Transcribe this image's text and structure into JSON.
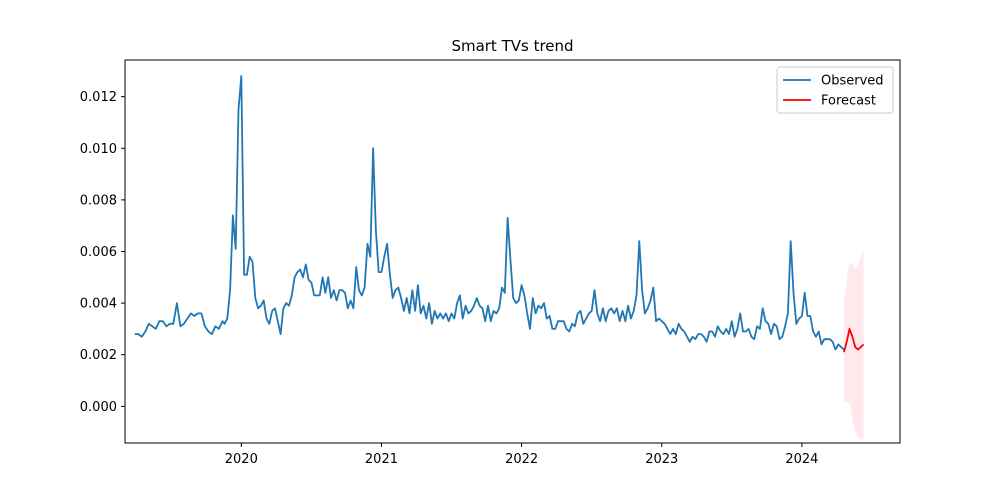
{
  "chart_data": {
    "type": "line",
    "title": "Smart TVs trend",
    "xlabel": "",
    "ylabel": "",
    "xlim": [
      2019.17,
      2024.7
    ],
    "ylim": [
      -0.00142,
      0.01342
    ],
    "xticks": [
      2020,
      2021,
      2022,
      2023,
      2024
    ],
    "xtick_labels": [
      "2020",
      "2021",
      "2022",
      "2023",
      "2024"
    ],
    "yticks": [
      0.0,
      0.002,
      0.004,
      0.006,
      0.008,
      0.01,
      0.012
    ],
    "ytick_labels": [
      "0.000",
      "0.002",
      "0.004",
      "0.006",
      "0.008",
      "0.010",
      "0.012"
    ],
    "legend": {
      "placement": "top-right",
      "entries": [
        {
          "label": "Observed",
          "color": "#1f77b4"
        },
        {
          "label": "Forecast",
          "color": "#ff0000"
        }
      ]
    },
    "grid": false,
    "series": [
      {
        "name": "Observed",
        "color": "#1f77b4",
        "x": [
          2019.24,
          2019.265,
          2019.29,
          2019.315,
          2019.34,
          2019.365,
          2019.39,
          2019.415,
          2019.44,
          2019.465,
          2019.49,
          2019.515,
          2019.54,
          2019.565,
          2019.59,
          2019.615,
          2019.64,
          2019.665,
          2019.69,
          2019.715,
          2019.74,
          2019.765,
          2019.79,
          2019.815,
          2019.84,
          2019.865,
          2019.88,
          2019.9,
          2019.92,
          2019.94,
          2019.96,
          2019.98,
          2020.0,
          2020.02,
          2020.04,
          2020.06,
          2020.08,
          2020.1,
          2020.12,
          2020.14,
          2020.16,
          2020.18,
          2020.2,
          2020.22,
          2020.24,
          2020.26,
          2020.28,
          2020.3,
          2020.32,
          2020.34,
          2020.36,
          2020.38,
          2020.4,
          2020.42,
          2020.44,
          2020.46,
          2020.48,
          2020.5,
          2020.52,
          2020.54,
          2020.56,
          2020.58,
          2020.6,
          2020.62,
          2020.64,
          2020.66,
          2020.68,
          2020.7,
          2020.72,
          2020.74,
          2020.76,
          2020.78,
          2020.8,
          2020.82,
          2020.84,
          2020.86,
          2020.88,
          2020.9,
          2020.92,
          2020.94,
          2020.96,
          2020.98,
          2021.0,
          2021.02,
          2021.04,
          2021.06,
          2021.08,
          2021.1,
          2021.12,
          2021.14,
          2021.16,
          2021.18,
          2021.2,
          2021.22,
          2021.24,
          2021.26,
          2021.28,
          2021.3,
          2021.32,
          2021.34,
          2021.36,
          2021.38,
          2021.4,
          2021.42,
          2021.44,
          2021.46,
          2021.48,
          2021.5,
          2021.52,
          2021.54,
          2021.56,
          2021.58,
          2021.6,
          2021.62,
          2021.64,
          2021.66,
          2021.68,
          2021.7,
          2021.72,
          2021.74,
          2021.76,
          2021.78,
          2021.8,
          2021.82,
          2021.84,
          2021.86,
          2021.88,
          2021.9,
          2021.92,
          2021.94,
          2021.96,
          2021.98,
          2022.0,
          2022.02,
          2022.04,
          2022.06,
          2022.08,
          2022.1,
          2022.12,
          2022.14,
          2022.16,
          2022.18,
          2022.2,
          2022.22,
          2022.24,
          2022.26,
          2022.28,
          2022.3,
          2022.32,
          2022.34,
          2022.36,
          2022.38,
          2022.4,
          2022.42,
          2022.44,
          2022.46,
          2022.48,
          2022.5,
          2022.52,
          2022.54,
          2022.56,
          2022.58,
          2022.6,
          2022.62,
          2022.64,
          2022.66,
          2022.68,
          2022.7,
          2022.72,
          2022.74,
          2022.76,
          2022.78,
          2022.8,
          2022.82,
          2022.84,
          2022.86,
          2022.88,
          2022.9,
          2022.92,
          2022.94,
          2022.96,
          2022.98,
          2023.0,
          2023.02,
          2023.04,
          2023.06,
          2023.08,
          2023.1,
          2023.12,
          2023.14,
          2023.16,
          2023.18,
          2023.2,
          2023.22,
          2023.24,
          2023.26,
          2023.28,
          2023.3,
          2023.32,
          2023.34,
          2023.36,
          2023.38,
          2023.4,
          2023.42,
          2023.44,
          2023.46,
          2023.48,
          2023.5,
          2023.52,
          2023.54,
          2023.56,
          2023.58,
          2023.6,
          2023.62,
          2023.64,
          2023.66,
          2023.68,
          2023.7,
          2023.72,
          2023.74,
          2023.76,
          2023.78,
          2023.8,
          2023.82,
          2023.84,
          2023.86,
          2023.88,
          2023.9,
          2023.92,
          2023.94,
          2023.96,
          2023.98,
          2024.0,
          2024.02,
          2024.04,
          2024.06,
          2024.08,
          2024.1,
          2024.12,
          2024.14,
          2024.16,
          2024.18,
          2024.2,
          2024.22,
          2024.24,
          2024.26,
          2024.28,
          2024.3
        ],
        "y": [
          0.0028,
          0.0028,
          0.0027,
          0.0029,
          0.0032,
          0.0031,
          0.003,
          0.0033,
          0.0033,
          0.0031,
          0.0032,
          0.0032,
          0.004,
          0.0031,
          0.0032,
          0.0034,
          0.0036,
          0.0035,
          0.0036,
          0.0036,
          0.0031,
          0.0029,
          0.0028,
          0.0031,
          0.003,
          0.0033,
          0.0032,
          0.0034,
          0.0045,
          0.0074,
          0.0061,
          0.0115,
          0.0128,
          0.0051,
          0.0051,
          0.0058,
          0.0056,
          0.0042,
          0.0038,
          0.0039,
          0.0041,
          0.0034,
          0.0032,
          0.0037,
          0.0038,
          0.0033,
          0.0028,
          0.0038,
          0.004,
          0.0039,
          0.0043,
          0.005,
          0.0052,
          0.0053,
          0.005,
          0.0055,
          0.0049,
          0.0048,
          0.0043,
          0.0043,
          0.0043,
          0.005,
          0.0044,
          0.005,
          0.0042,
          0.0045,
          0.0041,
          0.0045,
          0.0045,
          0.0044,
          0.0038,
          0.0041,
          0.0038,
          0.0054,
          0.0045,
          0.0043,
          0.0046,
          0.0063,
          0.0058,
          0.01,
          0.0068,
          0.0052,
          0.0052,
          0.0058,
          0.0063,
          0.0051,
          0.0042,
          0.0045,
          0.0046,
          0.0042,
          0.0037,
          0.0042,
          0.0036,
          0.0045,
          0.0037,
          0.0047,
          0.0036,
          0.0039,
          0.0034,
          0.004,
          0.0032,
          0.0037,
          0.0034,
          0.0036,
          0.0034,
          0.0036,
          0.0033,
          0.0036,
          0.0034,
          0.004,
          0.0043,
          0.0034,
          0.0039,
          0.0036,
          0.0037,
          0.0039,
          0.0042,
          0.0039,
          0.0038,
          0.0033,
          0.0039,
          0.0033,
          0.0037,
          0.0036,
          0.0038,
          0.0046,
          0.0044,
          0.0073,
          0.0057,
          0.0042,
          0.004,
          0.0041,
          0.0047,
          0.0043,
          0.0036,
          0.003,
          0.0042,
          0.0036,
          0.0039,
          0.0038,
          0.004,
          0.0034,
          0.0035,
          0.003,
          0.003,
          0.0033,
          0.0033,
          0.0033,
          0.003,
          0.0029,
          0.0032,
          0.0031,
          0.0036,
          0.0037,
          0.0032,
          0.0034,
          0.0036,
          0.0037,
          0.0045,
          0.0036,
          0.0033,
          0.0038,
          0.0033,
          0.0037,
          0.0038,
          0.0036,
          0.0038,
          0.0033,
          0.0037,
          0.0033,
          0.0039,
          0.0034,
          0.0037,
          0.0043,
          0.0064,
          0.0045,
          0.0036,
          0.0038,
          0.0041,
          0.0046,
          0.0033,
          0.0034,
          0.0033,
          0.0032,
          0.003,
          0.0028,
          0.003,
          0.0028,
          0.0032,
          0.003,
          0.0029,
          0.0027,
          0.0025,
          0.0027,
          0.0026,
          0.0028,
          0.0028,
          0.0027,
          0.0025,
          0.0029,
          0.0029,
          0.0027,
          0.0031,
          0.0029,
          0.0028,
          0.003,
          0.0028,
          0.0033,
          0.0027,
          0.003,
          0.0036,
          0.0029,
          0.0029,
          0.003,
          0.0027,
          0.0026,
          0.0031,
          0.003,
          0.0038,
          0.0033,
          0.0032,
          0.0028,
          0.0032,
          0.0031,
          0.0026,
          0.0027,
          0.0031,
          0.0036,
          0.0064,
          0.0044,
          0.0032,
          0.0034,
          0.0035,
          0.0044,
          0.0035,
          0.0035,
          0.0029,
          0.0027,
          0.0029,
          0.0024,
          0.0026,
          0.0026,
          0.0026,
          0.0025,
          0.0022,
          0.0024,
          0.0023,
          0.0022
        ]
      },
      {
        "name": "Forecast",
        "color": "#ff0000",
        "x": [
          2024.3,
          2024.32,
          2024.34,
          2024.36,
          2024.38,
          2024.4,
          2024.42,
          2024.44
        ],
        "y": [
          0.0021,
          0.0025,
          0.003,
          0.0027,
          0.0023,
          0.0022,
          0.0023,
          0.0024
        ],
        "lower": [
          0.0001,
          0.0002,
          0.0001,
          -0.0005,
          -0.001,
          -0.0012,
          -0.0013,
          -0.0012
        ],
        "upper": [
          0.004,
          0.0049,
          0.0056,
          0.0055,
          0.0053,
          0.0055,
          0.0058,
          0.006
        ]
      }
    ]
  }
}
